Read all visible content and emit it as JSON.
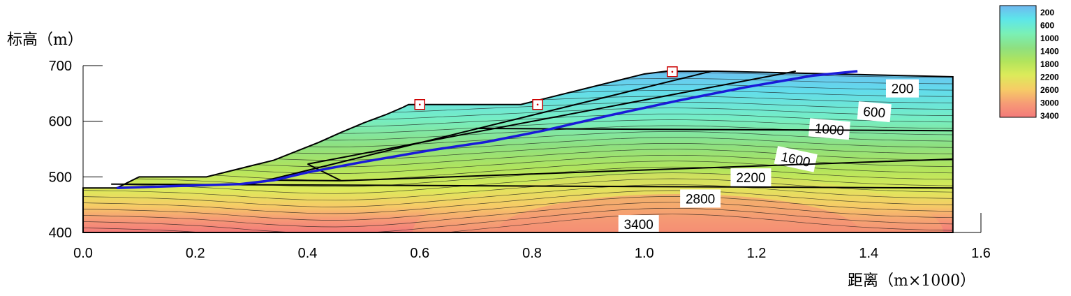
{
  "chart_data": {
    "type": "heatmap",
    "xlabel": "距离（m×1000）",
    "ylabel": "标高（m）",
    "xlim": [
      0.0,
      1.6
    ],
    "ylim": [
      400,
      700
    ],
    "x_ticks": [
      "0.0",
      "0.2",
      "0.4",
      "0.6",
      "0.8",
      "1.0",
      "1.2",
      "1.4",
      "1.6"
    ],
    "y_ticks": [
      "700",
      "600",
      "500",
      "400"
    ],
    "legend": {
      "placement": "top-right",
      "values": [
        "200",
        "600",
        "1000",
        "1400",
        "1800",
        "2200",
        "2600",
        "3000",
        "3400"
      ],
      "colors": [
        "#6fb8f0",
        "#5de6ea",
        "#7af0b6",
        "#8ee080",
        "#b2e45c",
        "#dceb5a",
        "#f6cc66",
        "#f69a76",
        "#f47a7a"
      ]
    },
    "contour_labels": [
      {
        "text": "200",
        "x": 1.46,
        "y": 659
      },
      {
        "text": "600",
        "x": 1.41,
        "y": 617
      },
      {
        "text": "1000",
        "x": 1.33,
        "y": 586
      },
      {
        "text": "1600",
        "x": 1.27,
        "y": 532
      },
      {
        "text": "2200",
        "x": 1.19,
        "y": 499
      },
      {
        "text": "2800",
        "x": 1.1,
        "y": 461
      },
      {
        "text": "3400",
        "x": 0.99,
        "y": 415
      }
    ],
    "slope_surface": [
      [
        0.0,
        480
      ],
      [
        0.06,
        480
      ],
      [
        0.1,
        500
      ],
      [
        0.22,
        500
      ],
      [
        0.26,
        510
      ],
      [
        0.3,
        520
      ],
      [
        0.34,
        530
      ],
      [
        0.38,
        546
      ],
      [
        0.42,
        562
      ],
      [
        0.46,
        580
      ],
      [
        0.5,
        597
      ],
      [
        0.54,
        612
      ],
      [
        0.57,
        625
      ],
      [
        0.58,
        630
      ],
      [
        0.78,
        630
      ],
      [
        0.82,
        640
      ],
      [
        0.88,
        655
      ],
      [
        0.94,
        670
      ],
      [
        1.0,
        685
      ],
      [
        1.04,
        690
      ],
      [
        1.13,
        690
      ],
      [
        1.55,
        680
      ]
    ],
    "monitoring_points": [
      {
        "x": 0.6,
        "y": 630
      },
      {
        "x": 0.81,
        "y": 630
      },
      {
        "x": 1.05,
        "y": 689
      }
    ],
    "slip_surface": [
      [
        0.06,
        480
      ],
      [
        0.18,
        484
      ],
      [
        0.28,
        487
      ],
      [
        0.34,
        494
      ],
      [
        0.4,
        508
      ],
      [
        0.5,
        527
      ],
      [
        0.62,
        548
      ],
      [
        0.72,
        563
      ],
      [
        0.82,
        583
      ],
      [
        0.94,
        611
      ],
      [
        1.06,
        637
      ],
      [
        1.18,
        661
      ],
      [
        1.3,
        682
      ],
      [
        1.38,
        690
      ]
    ],
    "colors": {
      "slip": "#1a1ad8",
      "boundary": "#000000",
      "marker": "#cc0000"
    }
  }
}
